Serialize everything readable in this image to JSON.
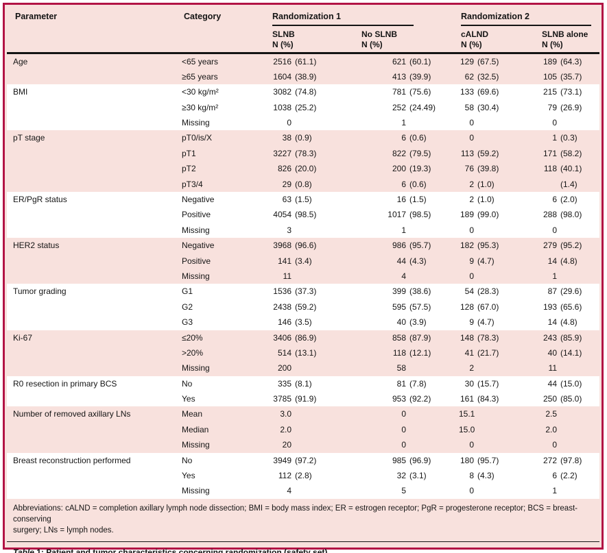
{
  "colors": {
    "accent_border": "#b21345",
    "background_pink": "#f8e1dd",
    "band_white": "#ffffff",
    "rule_black": "#141414"
  },
  "header": {
    "parameter": "Parameter",
    "category": "Category",
    "group1": "Randomization 1",
    "group2": "Randomization 2",
    "subcols": [
      {
        "label": "SLNB",
        "sub": "N (%)"
      },
      {
        "label": "No SLNB",
        "sub": "N (%)"
      },
      {
        "label": "cALND",
        "sub": "N (%)"
      },
      {
        "label": "SLNB alone",
        "sub": "N (%)"
      }
    ]
  },
  "groups": [
    {
      "parameter": "Age",
      "rows": [
        {
          "category": "<65 years",
          "values": [
            [
              "2516",
              "(61.1)"
            ],
            [
              "621",
              "(60.1)"
            ],
            [
              "129",
              "(67.5)"
            ],
            [
              "189",
              "(64.3)"
            ]
          ]
        },
        {
          "category": "≥65 years",
          "values": [
            [
              "1604",
              "(38.9)"
            ],
            [
              "413",
              "(39.9)"
            ],
            [
              "62",
              "(32.5)"
            ],
            [
              "105",
              "(35.7)"
            ]
          ]
        }
      ]
    },
    {
      "parameter": "BMI",
      "rows": [
        {
          "category": "<30 kg/m²",
          "values": [
            [
              "3082",
              "(74.8)"
            ],
            [
              "781",
              "(75.6)"
            ],
            [
              "133",
              "(69.6)"
            ],
            [
              "215",
              "(73.1)"
            ]
          ]
        },
        {
          "category": "≥30 kg/m²",
          "values": [
            [
              "1038",
              "(25.2)"
            ],
            [
              "252",
              "(24.49)"
            ],
            [
              "58",
              "(30.4)"
            ],
            [
              "79",
              "(26.9)"
            ]
          ]
        },
        {
          "category": "Missing",
          "values": [
            [
              "0",
              ""
            ],
            [
              "1",
              ""
            ],
            [
              "0",
              ""
            ],
            [
              "0",
              ""
            ]
          ]
        }
      ]
    },
    {
      "parameter": "pT stage",
      "rows": [
        {
          "category": "pT0/is/X",
          "values": [
            [
              "38",
              "(0.9)"
            ],
            [
              "6",
              "(0.6)"
            ],
            [
              "0",
              ""
            ],
            [
              "1",
              "(0.3)"
            ]
          ]
        },
        {
          "category": "pT1",
          "values": [
            [
              "3227",
              "(78.3)"
            ],
            [
              "822",
              "(79.5)"
            ],
            [
              "113",
              "(59.2)"
            ],
            [
              "171",
              "(58.2)"
            ]
          ]
        },
        {
          "category": "pT2",
          "values": [
            [
              "826",
              "(20.0)"
            ],
            [
              "200",
              "(19.3)"
            ],
            [
              "76",
              "(39.8)"
            ],
            [
              "118",
              "(40.1)"
            ]
          ]
        },
        {
          "category": "pT3/4",
          "values": [
            [
              "29",
              "(0.8)"
            ],
            [
              "6",
              "(0.6)"
            ],
            [
              "2",
              "(1.0)"
            ],
            [
              "",
              "(1.4)"
            ]
          ]
        }
      ]
    },
    {
      "parameter": "ER/PgR status",
      "rows": [
        {
          "category": "Negative",
          "values": [
            [
              "63",
              "(1.5)"
            ],
            [
              "16",
              "(1.5)"
            ],
            [
              "2",
              "(1.0)"
            ],
            [
              "6",
              "(2.0)"
            ]
          ]
        },
        {
          "category": "Positive",
          "values": [
            [
              "4054",
              "(98.5)"
            ],
            [
              "1017",
              "(98.5)"
            ],
            [
              "189",
              "(99.0)"
            ],
            [
              "288",
              "(98.0)"
            ]
          ]
        },
        {
          "category": "Missing",
          "values": [
            [
              "3",
              ""
            ],
            [
              "1",
              ""
            ],
            [
              "0",
              ""
            ],
            [
              "0",
              ""
            ]
          ]
        }
      ]
    },
    {
      "parameter": "HER2 status",
      "rows": [
        {
          "category": "Negative",
          "values": [
            [
              "3968",
              "(96.6)"
            ],
            [
              "986",
              "(95.7)"
            ],
            [
              "182",
              "(95.3)"
            ],
            [
              "279",
              "(95.2)"
            ]
          ]
        },
        {
          "category": "Positive",
          "values": [
            [
              "141",
              "(3.4)"
            ],
            [
              "44",
              "(4.3)"
            ],
            [
              "9",
              "(4.7)"
            ],
            [
              "14",
              "(4.8)"
            ]
          ]
        },
        {
          "category": "Missing",
          "values": [
            [
              "11",
              ""
            ],
            [
              "4",
              ""
            ],
            [
              "0",
              ""
            ],
            [
              "1",
              ""
            ]
          ]
        }
      ]
    },
    {
      "parameter": "Tumor grading",
      "rows": [
        {
          "category": "G1",
          "values": [
            [
              "1536",
              "(37.3)"
            ],
            [
              "399",
              "(38.6)"
            ],
            [
              "54",
              "(28.3)"
            ],
            [
              "87",
              "(29.6)"
            ]
          ]
        },
        {
          "category": "G2",
          "values": [
            [
              "2438",
              "(59.2)"
            ],
            [
              "595",
              "(57.5)"
            ],
            [
              "128",
              "(67.0)"
            ],
            [
              "193",
              "(65.6)"
            ]
          ]
        },
        {
          "category": "G3",
          "values": [
            [
              "146",
              "(3.5)"
            ],
            [
              "40",
              "(3.9)"
            ],
            [
              "9",
              "(4.7)"
            ],
            [
              "14",
              "(4.8)"
            ]
          ]
        }
      ]
    },
    {
      "parameter": "Ki-67",
      "rows": [
        {
          "category": "≤20%",
          "values": [
            [
              "3406",
              "(86.9)"
            ],
            [
              "858",
              "(87.9)"
            ],
            [
              "148",
              "(78.3)"
            ],
            [
              "243",
              "(85.9)"
            ]
          ]
        },
        {
          "category": ">20%",
          "values": [
            [
              "514",
              "(13.1)"
            ],
            [
              "118",
              "(12.1)"
            ],
            [
              "41",
              "(21.7)"
            ],
            [
              "40",
              "(14.1)"
            ]
          ]
        },
        {
          "category": "Missing",
          "values": [
            [
              "200",
              ""
            ],
            [
              "58",
              ""
            ],
            [
              "2",
              ""
            ],
            [
              "11",
              ""
            ]
          ]
        }
      ]
    },
    {
      "parameter": "R0 resection in primary BCS",
      "rows": [
        {
          "category": "No",
          "values": [
            [
              "335",
              "(8.1)"
            ],
            [
              "81",
              "(7.8)"
            ],
            [
              "30",
              "(15.7)"
            ],
            [
              "44",
              "(15.0)"
            ]
          ]
        },
        {
          "category": "Yes",
          "values": [
            [
              "3785",
              "(91.9)"
            ],
            [
              "953",
              "(92.2)"
            ],
            [
              "161",
              "(84.3)"
            ],
            [
              "250",
              "(85.0)"
            ]
          ]
        }
      ]
    },
    {
      "parameter": "Number of removed axillary LNs",
      "rows": [
        {
          "category": "Mean",
          "values": [
            [
              "3.0",
              ""
            ],
            [
              "0",
              ""
            ],
            [
              "15.1",
              ""
            ],
            [
              "2.5",
              ""
            ]
          ]
        },
        {
          "category": "Median",
          "values": [
            [
              "2.0",
              ""
            ],
            [
              "0",
              ""
            ],
            [
              "15.0",
              ""
            ],
            [
              "2.0",
              ""
            ]
          ]
        },
        {
          "category": "Missing",
          "values": [
            [
              "20",
              ""
            ],
            [
              "0",
              ""
            ],
            [
              "0",
              ""
            ],
            [
              "0",
              ""
            ]
          ]
        }
      ]
    },
    {
      "parameter": "Breast reconstruction performed",
      "rows": [
        {
          "category": "No",
          "values": [
            [
              "3949",
              "(97.2)"
            ],
            [
              "985",
              "(96.9)"
            ],
            [
              "180",
              "(95.7)"
            ],
            [
              "272",
              "(97.8)"
            ]
          ]
        },
        {
          "category": "Yes",
          "values": [
            [
              "112",
              "(2.8)"
            ],
            [
              "32",
              "(3.1)"
            ],
            [
              "8",
              "(4.3)"
            ],
            [
              "6",
              "(2.2)"
            ]
          ]
        },
        {
          "category": "Missing",
          "values": [
            [
              "4",
              ""
            ],
            [
              "5",
              ""
            ],
            [
              "0",
              ""
            ],
            [
              "1",
              ""
            ]
          ]
        }
      ]
    }
  ],
  "footnote": {
    "line1": "Abbreviations: cALND = completion axillary lymph node dissection; BMI = body mass index; ER = estrogen receptor; PgR = progesterone receptor; BCS = breast-conserving",
    "line2": "surgery; LNs = lymph nodes."
  },
  "caption": {
    "word": "Table",
    "num": "1:",
    "text": "Patient and tumor characteristics concerning randomization (safety set)."
  }
}
